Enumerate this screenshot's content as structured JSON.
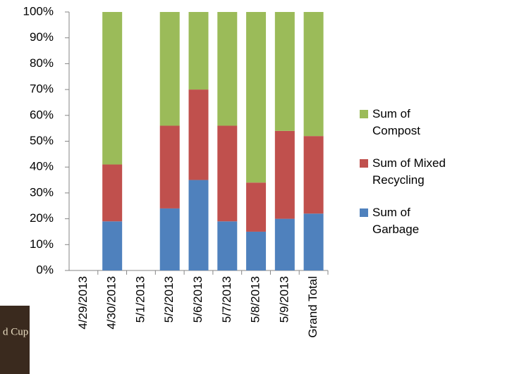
{
  "chart_data": {
    "type": "stacked-bar-100",
    "categories": [
      "4/29/2013",
      "4/30/2013",
      "5/1/2013",
      "5/2/2013",
      "5/6/2013",
      "5/7/2013",
      "5/8/2013",
      "5/9/2013",
      "Grand Total"
    ],
    "series": [
      {
        "name": "Sum of Garbage",
        "color": "#4f81bd",
        "values": [
          null,
          19,
          null,
          24,
          35,
          19,
          15,
          20,
          22
        ]
      },
      {
        "name": "Sum of Mixed Recycling",
        "color": "#c0504d",
        "values": [
          null,
          22,
          null,
          32,
          35,
          37,
          19,
          34,
          30
        ]
      },
      {
        "name": "Sum of Compost",
        "color": "#9bbb59",
        "values": [
          null,
          59,
          null,
          44,
          30,
          44,
          66,
          46,
          48
        ]
      }
    ],
    "ylim": [
      0,
      100
    ],
    "yticks": [
      {
        "value": 0,
        "label": "0%"
      },
      {
        "value": 10,
        "label": "10%"
      },
      {
        "value": 20,
        "label": "20%"
      },
      {
        "value": 30,
        "label": "30%"
      },
      {
        "value": 40,
        "label": "40%"
      },
      {
        "value": 50,
        "label": "50%"
      },
      {
        "value": 60,
        "label": "60%"
      },
      {
        "value": 70,
        "label": "70%"
      },
      {
        "value": 80,
        "label": "80%"
      },
      {
        "value": 90,
        "label": "90%"
      },
      {
        "value": 100,
        "label": "100%"
      }
    ],
    "grid": false,
    "legend": "right"
  },
  "image_text": "d Cup"
}
